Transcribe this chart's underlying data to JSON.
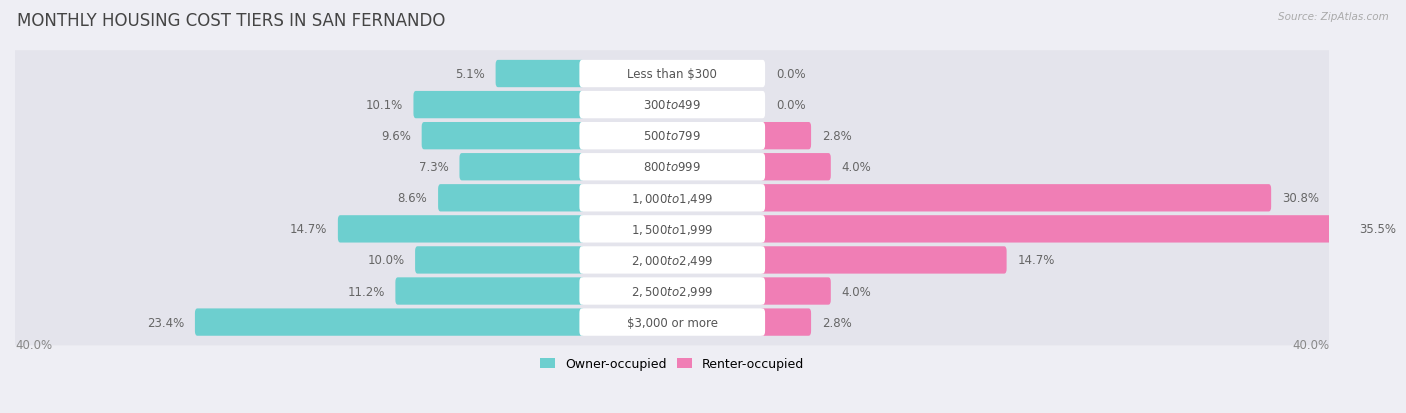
{
  "title": "MONTHLY HOUSING COST TIERS IN SAN FERNANDO",
  "source": "Source: ZipAtlas.com",
  "categories": [
    "Less than $300",
    "$300 to $499",
    "$500 to $799",
    "$800 to $999",
    "$1,000 to $1,499",
    "$1,500 to $1,999",
    "$2,000 to $2,499",
    "$2,500 to $2,999",
    "$3,000 or more"
  ],
  "owner_values": [
    5.1,
    10.1,
    9.6,
    7.3,
    8.6,
    14.7,
    10.0,
    11.2,
    23.4
  ],
  "renter_values": [
    0.0,
    0.0,
    2.8,
    4.0,
    30.8,
    35.5,
    14.7,
    4.0,
    2.8
  ],
  "owner_color": "#6DCFCF",
  "renter_color": "#F07EB5",
  "background_color": "#eeeef4",
  "row_background": "#e4e4ec",
  "label_box_color": "#ffffff",
  "axis_limit": 40.0,
  "title_fontsize": 12,
  "label_fontsize": 8.5,
  "value_fontsize": 8.5,
  "tick_fontsize": 8.5,
  "legend_fontsize": 9
}
